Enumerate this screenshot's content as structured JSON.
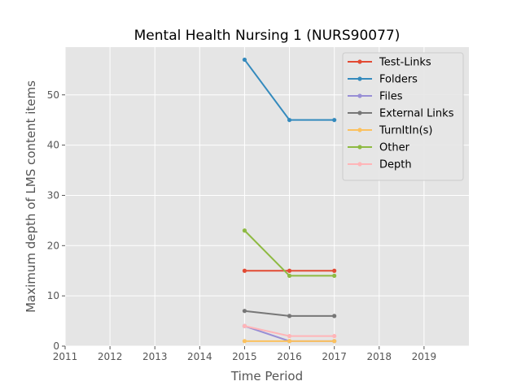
{
  "chart_data": {
    "type": "line",
    "title": "Mental Health Nursing 1 (NURS90077)",
    "xlabel": "Time Period",
    "ylabel": "Maximum depth of LMS content items",
    "xlim": [
      2011,
      2020
    ],
    "ylim": [
      0,
      59.5
    ],
    "x_ticks": [
      "2011",
      "2012",
      "2013",
      "2014",
      "2015",
      "2016",
      "2017",
      "2018",
      "2019"
    ],
    "y_ticks": [
      "0",
      "10",
      "20",
      "30",
      "40",
      "50"
    ],
    "grid": true,
    "legend_position": "top-right",
    "x": [
      2015,
      2016,
      2017
    ],
    "series": [
      {
        "name": "Test-Links",
        "color": "#E24A33",
        "values": [
          15,
          15,
          15
        ]
      },
      {
        "name": "Folders",
        "color": "#348ABD",
        "values": [
          57,
          45,
          45
        ]
      },
      {
        "name": "Files",
        "color": "#988ED5",
        "values": [
          4,
          1,
          1
        ]
      },
      {
        "name": "External Links",
        "color": "#777777",
        "values": [
          7,
          6,
          6
        ]
      },
      {
        "name": "TurnItIn(s)",
        "color": "#FBC15E",
        "values": [
          1,
          1,
          1
        ]
      },
      {
        "name": "Other",
        "color": "#8EBA42",
        "values": [
          23,
          14,
          14
        ]
      },
      {
        "name": "Depth",
        "color": "#FFB5B8",
        "values": [
          4,
          2,
          2
        ]
      }
    ]
  }
}
